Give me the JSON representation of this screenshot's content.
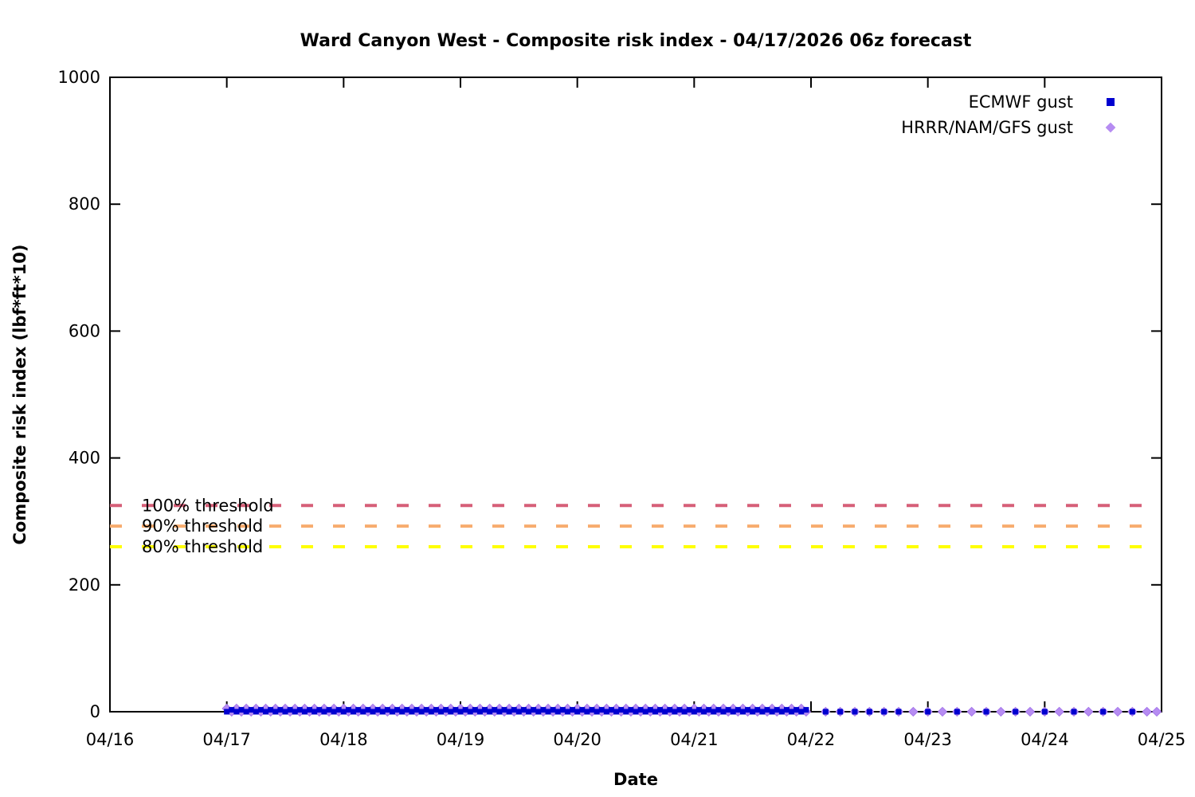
{
  "chart_data": {
    "type": "scatter",
    "title": "Ward Canyon West - Composite risk index - 04/17/2026 06z forecast",
    "xlabel": "Date",
    "ylabel": "Composite risk index (lbf*ft*10)",
    "x_tick_labels": [
      "04/16",
      "04/17",
      "04/18",
      "04/19",
      "04/20",
      "04/21",
      "04/22",
      "04/23",
      "04/24",
      "04/25"
    ],
    "y_ticks": [
      0,
      200,
      400,
      600,
      800,
      1000
    ],
    "ylim": [
      0,
      1000
    ],
    "x_span_days": 9,
    "grid": false,
    "ticks": "inward, mirrored on top and right borders",
    "legend_position": "top-right-inside",
    "legend": [
      {
        "label": "ECMWF gust",
        "marker": "square",
        "color": "#0000d0"
      },
      {
        "label": "HRRR/NAM/GFS gust",
        "marker": "diamond",
        "color": "#b68cf2"
      }
    ],
    "thresholds": [
      {
        "label": "100% threshold",
        "value": 325,
        "color": "#d65f78",
        "style": "dashed"
      },
      {
        "label": "90% threshold",
        "value": 292.5,
        "color": "#f7ac6e",
        "style": "dashed"
      },
      {
        "label": "80% threshold",
        "value": 260,
        "color": "#ffff00",
        "style": "dashed"
      }
    ],
    "series": [
      {
        "name": "ECMWF gust",
        "marker": "square",
        "color": "#0000d0",
        "points_note": "all values approximately 0 lbf*ft*10, far below every threshold",
        "segments": [
          {
            "from_day": 1.0,
            "to_day": 5.96,
            "step_hours": 1,
            "values_cycle": [
              0,
              3
            ]
          },
          {
            "from_day": 6.125,
            "to_day": 6.75,
            "step_hours": 3,
            "values_cycle": [
              0
            ]
          },
          {
            "from_day": 7.0,
            "to_day": 8.75,
            "step_hours": 6,
            "values_cycle": [
              0
            ]
          }
        ]
      },
      {
        "name": "HRRR/NAM/GFS gust",
        "marker": "diamond",
        "color": "#b68cf2",
        "points_note": "all values approximately 0 lbf*ft*10, far below every threshold",
        "segments": [
          {
            "from_day": 1.0,
            "to_day": 5.96,
            "step_hours": 1,
            "values_cycle": [
              5,
              0
            ]
          },
          {
            "from_day": 6.125,
            "to_day": 9.0,
            "step_hours": 3,
            "values_cycle": [
              0
            ]
          }
        ]
      }
    ]
  }
}
